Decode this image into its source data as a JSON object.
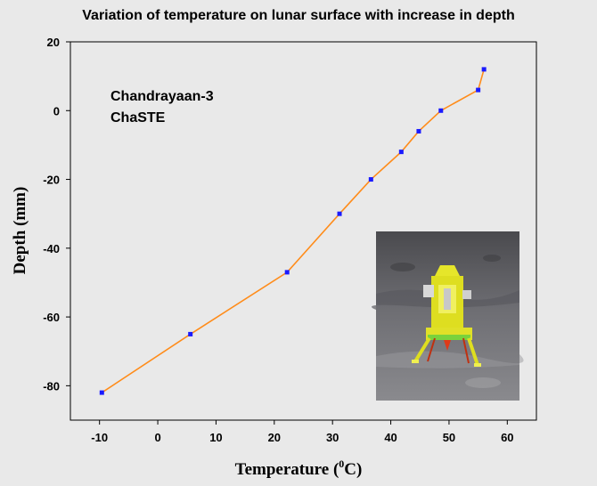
{
  "chart_data": {
    "type": "line",
    "title": "Variation of temperature on lunar surface with increase in depth",
    "xlabel": "Temperature (",
    "xlabel_sup": "0",
    "xlabel_unit": "C)",
    "ylabel": "Depth (mm)",
    "xlim": [
      -15,
      65
    ],
    "ylim": [
      -90,
      20
    ],
    "xticks": [
      -10,
      0,
      10,
      20,
      30,
      40,
      50,
      60
    ],
    "yticks": [
      20,
      0,
      -20,
      -40,
      -60,
      -80
    ],
    "grid": false,
    "annotations": [
      "Chandrayaan-3",
      "ChaSTE"
    ],
    "series": [
      {
        "x": [
          -9.6,
          5.6,
          22.2,
          31.2,
          36.6,
          41.8,
          44.8,
          48.6,
          55.0,
          56.0
        ],
        "y": [
          -82,
          -65,
          -47,
          -30,
          -20,
          -12,
          -6,
          0,
          6,
          12
        ],
        "line_color": "#ff8c1a",
        "marker_color": "#1a1aff"
      }
    ]
  },
  "inset": {
    "icon": "lunar-lander-photo"
  }
}
